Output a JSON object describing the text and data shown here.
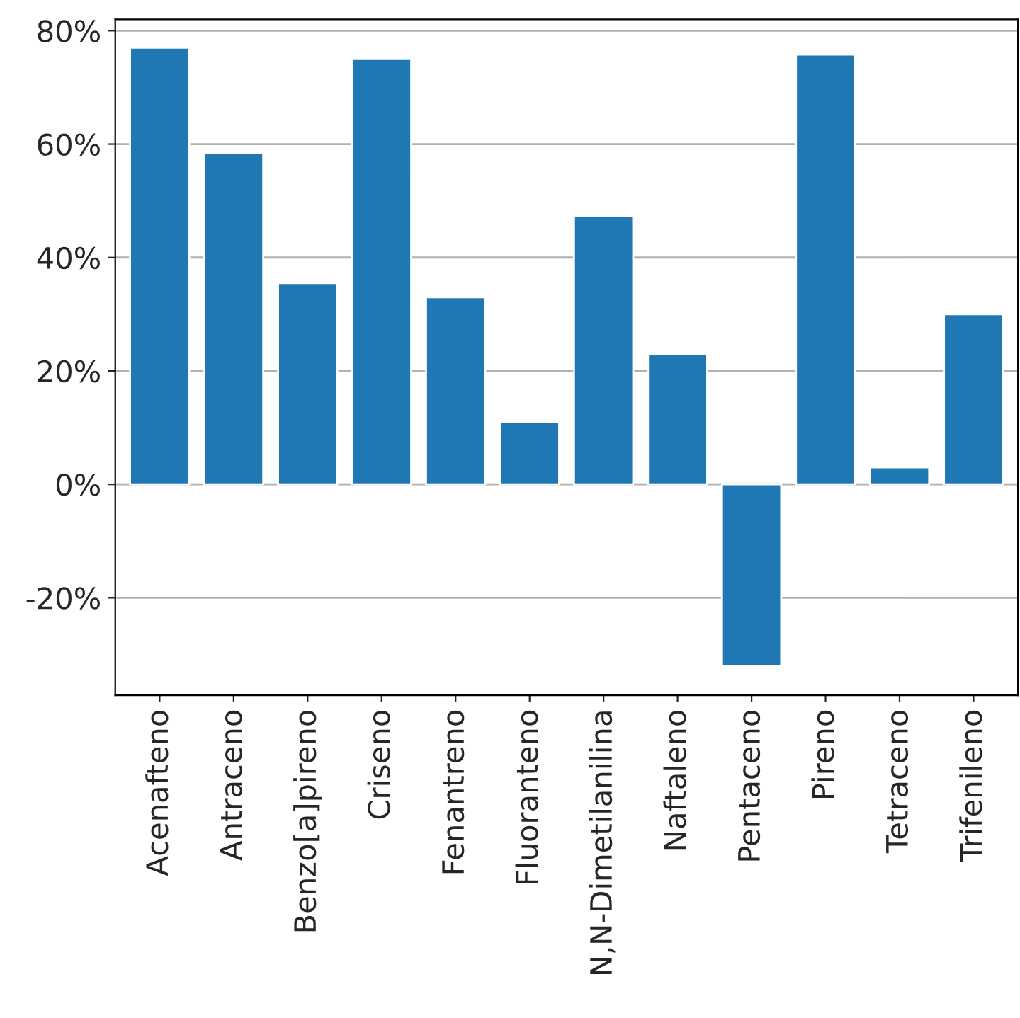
{
  "chart_data": {
    "type": "bar",
    "categories": [
      "Acenafteno",
      "Antraceno",
      "Benzo[a]pireno",
      "Criseno",
      "Fenantreno",
      "Fluoranteno",
      "N,N-Dimetilanilina",
      "Naftaleno",
      "Pentaceno",
      "Pireno",
      "Tetraceno",
      "Trifenileno"
    ],
    "values": [
      77,
      58.5,
      35.5,
      75,
      33,
      11,
      47.3,
      23,
      -32,
      75.8,
      3,
      30
    ],
    "color": "#1f77b4",
    "ylim": [
      -37.2,
      82
    ],
    "yticks": [
      {
        "value": -20,
        "label": "-20%"
      },
      {
        "value": 0,
        "label": "0%"
      },
      {
        "value": 20,
        "label": "20%"
      },
      {
        "value": 40,
        "label": "40%"
      },
      {
        "value": 60,
        "label": "60%"
      },
      {
        "value": 80,
        "label": "80%"
      }
    ],
    "grid": "y"
  }
}
